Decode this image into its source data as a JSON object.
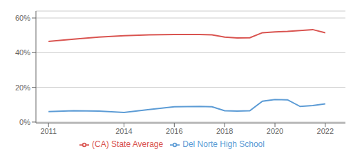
{
  "chart_data": {
    "type": "line",
    "x": [
      2011,
      2012,
      2013,
      2014,
      2015,
      2016,
      2017,
      2017.5,
      2018,
      2018.5,
      2019,
      2019.5,
      2020,
      2020.5,
      2021,
      2021.5,
      2022
    ],
    "series": [
      {
        "name": "Del Norte High School",
        "color": "#5b9bd5",
        "values": [
          0.06,
          0.065,
          0.063,
          0.055,
          0.072,
          0.088,
          0.09,
          0.088,
          0.065,
          0.063,
          0.065,
          0.12,
          0.13,
          0.128,
          0.09,
          0.095,
          0.105
        ]
      },
      {
        "name": "(CA) State Average",
        "color": "#d9534f",
        "values": [
          0.465,
          0.478,
          0.49,
          0.498,
          0.503,
          0.505,
          0.505,
          0.503,
          0.49,
          0.485,
          0.486,
          0.515,
          0.52,
          0.523,
          0.528,
          0.533,
          0.515
        ]
      }
    ],
    "xlim": [
      2010.5,
      2022.8
    ],
    "xticks": [
      2011,
      2014,
      2016,
      2018,
      2020,
      2022
    ],
    "ylim": [
      -0.005,
      0.64
    ],
    "yticks": [
      {
        "value": 0.0,
        "label": "0%"
      },
      {
        "value": 0.2,
        "label": "20%"
      },
      {
        "value": 0.4,
        "label": "40%"
      },
      {
        "value": 0.6,
        "label": "60%"
      }
    ],
    "grid": true,
    "legend": "bottom"
  }
}
